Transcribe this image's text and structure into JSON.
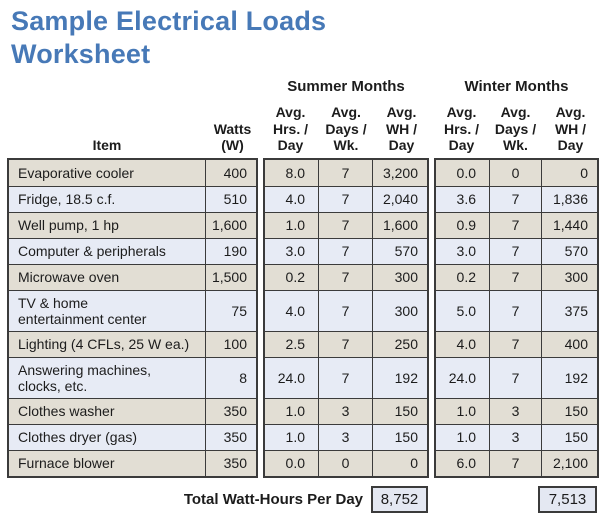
{
  "title": "Sample Electrical Loads Worksheet",
  "colors": {
    "title": "#4779B7",
    "border": "#3B3B3B",
    "row_tan": "#E2DED4",
    "row_blue": "#E7EBF5",
    "total_box_bg": "#E4E8F2",
    "text": "#1C1C1C"
  },
  "table": {
    "group_headers": {
      "summer": "Summer Months",
      "winter": "Winter Months"
    },
    "column_headers": {
      "item": "Item",
      "watts": "Watts\n(W)",
      "avg_hrs": "Avg.\nHrs. /\nDay",
      "avg_days": "Avg.\nDays /\nWk.",
      "avg_wh": "Avg.\nWH /\nDay"
    },
    "rows": [
      {
        "item": "Evaporative cooler",
        "watts": "400",
        "summer": [
          "8.0",
          "7",
          "3,200"
        ],
        "winter": [
          "0.0",
          "0",
          "0"
        ],
        "tall": false
      },
      {
        "item": "Fridge, 18.5 c.f.",
        "watts": "510",
        "summer": [
          "4.0",
          "7",
          "2,040"
        ],
        "winter": [
          "3.6",
          "7",
          "1,836"
        ],
        "tall": false
      },
      {
        "item": "Well pump, 1 hp",
        "watts": "1,600",
        "summer": [
          "1.0",
          "7",
          "1,600"
        ],
        "winter": [
          "0.9",
          "7",
          "1,440"
        ],
        "tall": false
      },
      {
        "item": "Computer & peripherals",
        "watts": "190",
        "summer": [
          "3.0",
          "7",
          "570"
        ],
        "winter": [
          "3.0",
          "7",
          "570"
        ],
        "tall": false
      },
      {
        "item": "Microwave oven",
        "watts": "1,500",
        "summer": [
          "0.2",
          "7",
          "300"
        ],
        "winter": [
          "0.2",
          "7",
          "300"
        ],
        "tall": false
      },
      {
        "item": "TV & home\nentertainment center",
        "watts": "75",
        "summer": [
          "4.0",
          "7",
          "300"
        ],
        "winter": [
          "5.0",
          "7",
          "375"
        ],
        "tall": true
      },
      {
        "item": "Lighting (4 CFLs, 25 W ea.)",
        "watts": "100",
        "summer": [
          "2.5",
          "7",
          "250"
        ],
        "winter": [
          "4.0",
          "7",
          "400"
        ],
        "tall": false
      },
      {
        "item": "Answering machines,\nclocks, etc.",
        "watts": "8",
        "summer": [
          "24.0",
          "7",
          "192"
        ],
        "winter": [
          "24.0",
          "7",
          "192"
        ],
        "tall": true
      },
      {
        "item": "Clothes washer",
        "watts": "350",
        "summer": [
          "1.0",
          "3",
          "150"
        ],
        "winter": [
          "1.0",
          "3",
          "150"
        ],
        "tall": false
      },
      {
        "item": "Clothes dryer (gas)",
        "watts": "350",
        "summer": [
          "1.0",
          "3",
          "150"
        ],
        "winter": [
          "1.0",
          "3",
          "150"
        ],
        "tall": false
      },
      {
        "item": "Furnace blower",
        "watts": "350",
        "summer": [
          "0.0",
          "0",
          "0"
        ],
        "winter": [
          "6.0",
          "7",
          "2,100"
        ],
        "tall": false
      }
    ],
    "totals": {
      "label": "Total Watt-Hours Per Day",
      "summer": "8,752",
      "winter": "7,513"
    }
  }
}
